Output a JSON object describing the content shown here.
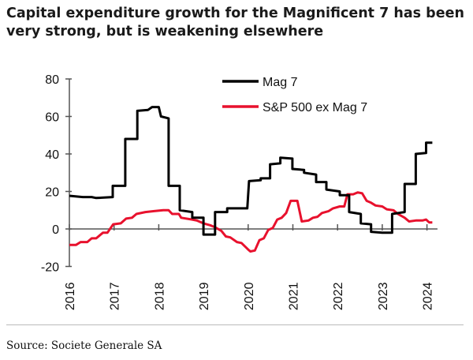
{
  "title": "Capital expenditure growth for the Magnificent 7 has been very strong, but is weakening elsewhere",
  "source": "Source: Societe Generale SA",
  "chart_data": {
    "type": "line",
    "title": "",
    "xlabel": "",
    "ylabel": "",
    "xlim": [
      2016,
      2024.2
    ],
    "ylim": [
      -20,
      80
    ],
    "yticks": [
      -20,
      0,
      20,
      40,
      60,
      80
    ],
    "xticks": [
      2016,
      2017,
      2018,
      2019,
      2020,
      2021,
      2022,
      2023,
      2024
    ],
    "grid": false,
    "legend": "top-center",
    "series": [
      {
        "name": "Mag 7",
        "color": "#000000",
        "points": [
          [
            2016.0,
            17.7
          ],
          [
            2016.3,
            17
          ],
          [
            2016.5,
            17
          ],
          [
            2016.6,
            16.5
          ],
          [
            2016.97,
            17
          ],
          [
            2016.97,
            23
          ],
          [
            2017.25,
            23
          ],
          [
            2017.25,
            48
          ],
          [
            2017.52,
            48
          ],
          [
            2017.52,
            63
          ],
          [
            2017.76,
            63.5
          ],
          [
            2017.85,
            65
          ],
          [
            2018.0,
            65
          ],
          [
            2018.05,
            60
          ],
          [
            2018.22,
            59
          ],
          [
            2018.22,
            23
          ],
          [
            2018.47,
            23
          ],
          [
            2018.47,
            10
          ],
          [
            2018.75,
            9
          ],
          [
            2018.75,
            6
          ],
          [
            2019.0,
            6
          ],
          [
            2019.0,
            -3
          ],
          [
            2019.26,
            -3
          ],
          [
            2019.26,
            9
          ],
          [
            2019.53,
            9
          ],
          [
            2019.53,
            11
          ],
          [
            2019.98,
            11
          ],
          [
            2020.02,
            25.5
          ],
          [
            2020.28,
            26
          ],
          [
            2020.28,
            27
          ],
          [
            2020.49,
            27
          ],
          [
            2020.49,
            34.5
          ],
          [
            2020.72,
            35
          ],
          [
            2020.72,
            38
          ],
          [
            2020.99,
            37.5
          ],
          [
            2020.99,
            32
          ],
          [
            2021.25,
            31.5
          ],
          [
            2021.25,
            30
          ],
          [
            2021.52,
            29
          ],
          [
            2021.52,
            25
          ],
          [
            2021.75,
            25
          ],
          [
            2021.75,
            21
          ],
          [
            2022.05,
            20
          ],
          [
            2022.05,
            18
          ],
          [
            2022.26,
            18
          ],
          [
            2022.26,
            9
          ],
          [
            2022.52,
            8
          ],
          [
            2022.52,
            3
          ],
          [
            2022.75,
            2.5
          ],
          [
            2022.75,
            -1.5
          ],
          [
            2023.0,
            -2
          ],
          [
            2023.22,
            -2
          ],
          [
            2023.22,
            8
          ],
          [
            2023.5,
            9
          ],
          [
            2023.5,
            24
          ],
          [
            2023.75,
            24
          ],
          [
            2023.75,
            40
          ],
          [
            2023.98,
            40.5
          ],
          [
            2023.98,
            46
          ],
          [
            2024.12,
            46
          ]
        ]
      },
      {
        "name": "S&P 500 ex Mag 7",
        "color": "#e8112d",
        "points": [
          [
            2016.0,
            -8.5
          ],
          [
            2016.15,
            -8.5
          ],
          [
            2016.25,
            -7
          ],
          [
            2016.4,
            -7
          ],
          [
            2016.5,
            -5
          ],
          [
            2016.6,
            -5
          ],
          [
            2016.75,
            -2
          ],
          [
            2016.85,
            -2
          ],
          [
            2016.98,
            2.5
          ],
          [
            2017.15,
            3
          ],
          [
            2017.27,
            5.5
          ],
          [
            2017.4,
            6
          ],
          [
            2017.5,
            8
          ],
          [
            2017.7,
            9
          ],
          [
            2017.9,
            9.5
          ],
          [
            2018.1,
            10
          ],
          [
            2018.22,
            10
          ],
          [
            2018.3,
            8
          ],
          [
            2018.45,
            8
          ],
          [
            2018.5,
            6
          ],
          [
            2018.75,
            5
          ],
          [
            2018.85,
            4.5
          ],
          [
            2019.0,
            3
          ],
          [
            2019.15,
            2
          ],
          [
            2019.25,
            1
          ],
          [
            2019.4,
            -1
          ],
          [
            2019.5,
            -4
          ],
          [
            2019.6,
            -4.5
          ],
          [
            2019.75,
            -7
          ],
          [
            2019.85,
            -7.5
          ],
          [
            2020.0,
            -11
          ],
          [
            2020.05,
            -12
          ],
          [
            2020.15,
            -11.5
          ],
          [
            2020.25,
            -6
          ],
          [
            2020.35,
            -5
          ],
          [
            2020.45,
            -0.5
          ],
          [
            2020.55,
            0.5
          ],
          [
            2020.65,
            5
          ],
          [
            2020.75,
            6
          ],
          [
            2020.85,
            8.5
          ],
          [
            2020.95,
            15
          ],
          [
            2021.1,
            15
          ],
          [
            2021.2,
            4
          ],
          [
            2021.35,
            4.5
          ],
          [
            2021.45,
            6
          ],
          [
            2021.55,
            6.5
          ],
          [
            2021.65,
            8.5
          ],
          [
            2021.8,
            9.5
          ],
          [
            2021.9,
            11
          ],
          [
            2022.05,
            12
          ],
          [
            2022.15,
            12
          ],
          [
            2022.22,
            18.5
          ],
          [
            2022.35,
            18.5
          ],
          [
            2022.45,
            19.5
          ],
          [
            2022.55,
            19
          ],
          [
            2022.65,
            15
          ],
          [
            2022.75,
            14
          ],
          [
            2022.85,
            12.5
          ],
          [
            2023.0,
            12
          ],
          [
            2023.1,
            10.5
          ],
          [
            2023.25,
            10
          ],
          [
            2023.35,
            8
          ],
          [
            2023.5,
            6
          ],
          [
            2023.6,
            4
          ],
          [
            2023.75,
            4.5
          ],
          [
            2023.9,
            4.5
          ],
          [
            2023.98,
            5
          ],
          [
            2024.05,
            3.5
          ],
          [
            2024.12,
            3.5
          ]
        ]
      }
    ]
  }
}
